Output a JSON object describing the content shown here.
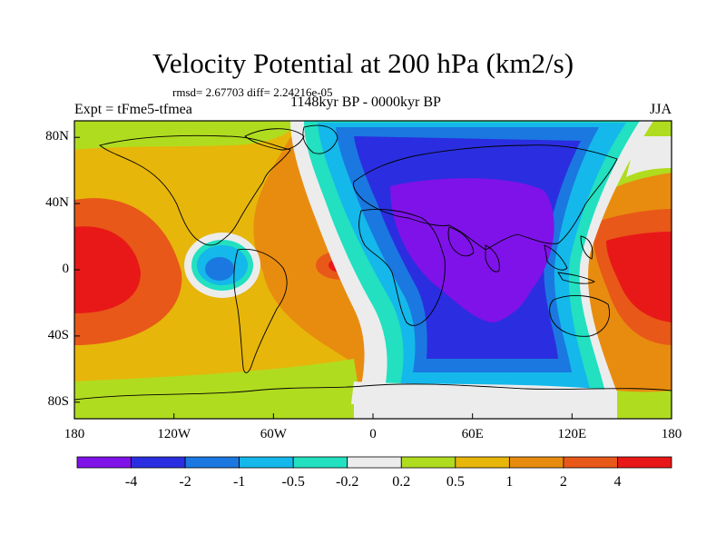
{
  "header": {
    "title": "Velocity Potential at 200 hPa (km2/s)",
    "stats": "rmsd= 2.67703 diff= 2.24216e-05",
    "experiment": "Expt = tFme5-tfmea",
    "period": "1148kyr BP - 0000kyr BP",
    "season": "JJA"
  },
  "map": {
    "projection": "cylindrical equidistant",
    "lon_range": [
      -180,
      180
    ],
    "lat_range": [
      -90,
      90
    ],
    "y_ticks": [
      {
        "value": 80,
        "label": "80N"
      },
      {
        "value": 40,
        "label": "40N"
      },
      {
        "value": 0,
        "label": "0"
      },
      {
        "value": -40,
        "label": "40S"
      },
      {
        "value": -80,
        "label": "80S"
      }
    ],
    "x_ticks": [
      {
        "value": -180,
        "label": "180"
      },
      {
        "value": -120,
        "label": "120W"
      },
      {
        "value": -60,
        "label": "60W"
      },
      {
        "value": 0,
        "label": "0"
      },
      {
        "value": 60,
        "label": "60E"
      },
      {
        "value": 120,
        "label": "120E"
      },
      {
        "value": 180,
        "label": "180"
      }
    ]
  },
  "colorbar": {
    "colors": [
      "#7f12e8",
      "#2a2ee0",
      "#1a78e0",
      "#14b8ea",
      "#22e0c0",
      "#ececec",
      "#b0dc20",
      "#e6b60a",
      "#e88c10",
      "#e85818",
      "#e81818"
    ],
    "labels": [
      "-4",
      "-2",
      "-1",
      "-0.5",
      "-0.2",
      "0.2",
      "0.5",
      "1",
      "2",
      "4"
    ]
  }
}
